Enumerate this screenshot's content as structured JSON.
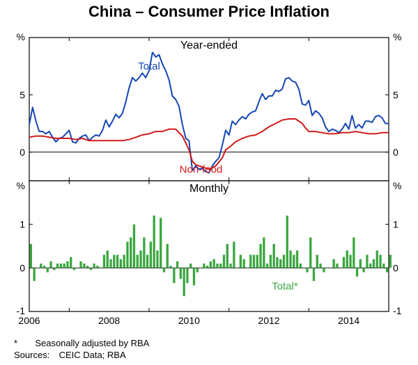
{
  "title": "China – Consumer Price Inflation",
  "top_panel": {
    "subtitle": "Year-ended",
    "type": "line",
    "y_unit_left": "%",
    "y_unit_right": "%",
    "ylim": [
      -2.5,
      10
    ],
    "yticks": [
      0,
      5
    ],
    "x_start": 2005,
    "x_end": 2014,
    "zero_line_color": "#000000",
    "series": [
      {
        "name": "Total",
        "color": "#1646b5",
        "line_width": 2,
        "label_pos_year": 2008,
        "label_pos_y": 7.2,
        "data": [
          [
            2005.0,
            2.4
          ],
          [
            2005.083,
            3.9
          ],
          [
            2005.167,
            2.7
          ],
          [
            2005.25,
            1.8
          ],
          [
            2005.333,
            1.8
          ],
          [
            2005.417,
            1.6
          ],
          [
            2005.5,
            1.8
          ],
          [
            2005.583,
            1.3
          ],
          [
            2005.667,
            0.9
          ],
          [
            2005.75,
            1.2
          ],
          [
            2005.833,
            1.3
          ],
          [
            2005.917,
            1.6
          ],
          [
            2006.0,
            1.9
          ],
          [
            2006.083,
            0.9
          ],
          [
            2006.167,
            0.8
          ],
          [
            2006.25,
            1.2
          ],
          [
            2006.333,
            1.4
          ],
          [
            2006.417,
            1.5
          ],
          [
            2006.5,
            1.0
          ],
          [
            2006.583,
            1.3
          ],
          [
            2006.667,
            1.5
          ],
          [
            2006.75,
            1.4
          ],
          [
            2006.833,
            1.9
          ],
          [
            2006.917,
            2.8
          ],
          [
            2007.0,
            2.2
          ],
          [
            2007.083,
            2.7
          ],
          [
            2007.167,
            3.3
          ],
          [
            2007.25,
            3.0
          ],
          [
            2007.333,
            3.4
          ],
          [
            2007.417,
            4.4
          ],
          [
            2007.5,
            5.6
          ],
          [
            2007.583,
            6.5
          ],
          [
            2007.667,
            6.2
          ],
          [
            2007.75,
            6.5
          ],
          [
            2007.833,
            6.9
          ],
          [
            2007.917,
            6.5
          ],
          [
            2008.0,
            7.1
          ],
          [
            2008.083,
            8.7
          ],
          [
            2008.167,
            8.3
          ],
          [
            2008.25,
            8.5
          ],
          [
            2008.333,
            7.7
          ],
          [
            2008.417,
            7.1
          ],
          [
            2008.5,
            6.3
          ],
          [
            2008.583,
            4.9
          ],
          [
            2008.667,
            4.6
          ],
          [
            2008.75,
            4.0
          ],
          [
            2008.833,
            2.4
          ],
          [
            2008.917,
            1.2
          ],
          [
            2009.0,
            1.0
          ],
          [
            2009.083,
            -1.6
          ],
          [
            2009.167,
            -1.2
          ],
          [
            2009.25,
            -1.5
          ],
          [
            2009.333,
            -1.4
          ],
          [
            2009.417,
            -1.7
          ],
          [
            2009.5,
            -1.8
          ],
          [
            2009.583,
            -1.2
          ],
          [
            2009.667,
            -0.8
          ],
          [
            2009.75,
            -0.5
          ],
          [
            2009.833,
            0.6
          ],
          [
            2009.917,
            1.9
          ],
          [
            2010.0,
            1.5
          ],
          [
            2010.083,
            2.7
          ],
          [
            2010.167,
            2.4
          ],
          [
            2010.25,
            2.8
          ],
          [
            2010.333,
            3.1
          ],
          [
            2010.417,
            2.9
          ],
          [
            2010.5,
            3.3
          ],
          [
            2010.583,
            3.5
          ],
          [
            2010.667,
            3.6
          ],
          [
            2010.75,
            4.4
          ],
          [
            2010.833,
            5.1
          ],
          [
            2010.917,
            4.6
          ],
          [
            2011.0,
            4.9
          ],
          [
            2011.083,
            4.9
          ],
          [
            2011.167,
            5.4
          ],
          [
            2011.25,
            5.3
          ],
          [
            2011.333,
            5.5
          ],
          [
            2011.417,
            6.4
          ],
          [
            2011.5,
            6.5
          ],
          [
            2011.583,
            6.2
          ],
          [
            2011.667,
            6.1
          ],
          [
            2011.75,
            5.5
          ],
          [
            2011.833,
            4.2
          ],
          [
            2011.917,
            4.1
          ],
          [
            2012.0,
            4.5
          ],
          [
            2012.083,
            3.2
          ],
          [
            2012.167,
            3.6
          ],
          [
            2012.25,
            3.4
          ],
          [
            2012.333,
            3.0
          ],
          [
            2012.417,
            2.2
          ],
          [
            2012.5,
            1.8
          ],
          [
            2012.583,
            2.0
          ],
          [
            2012.667,
            1.9
          ],
          [
            2012.75,
            1.7
          ],
          [
            2012.833,
            2.0
          ],
          [
            2012.917,
            2.5
          ],
          [
            2013.0,
            2.0
          ],
          [
            2013.083,
            3.2
          ],
          [
            2013.167,
            2.1
          ],
          [
            2013.25,
            2.4
          ],
          [
            2013.333,
            2.1
          ],
          [
            2013.417,
            2.7
          ],
          [
            2013.5,
            2.7
          ],
          [
            2013.583,
            2.6
          ],
          [
            2013.667,
            3.1
          ],
          [
            2013.75,
            3.2
          ],
          [
            2013.833,
            3.0
          ],
          [
            2013.917,
            2.5
          ],
          [
            2014.0,
            2.5
          ]
        ]
      },
      {
        "name": "Non-food",
        "color": "#d11a1a",
        "line_width": 2,
        "label_pos_year": 2009.3,
        "label_pos_y": -1.8,
        "data": [
          [
            2005.0,
            1.3
          ],
          [
            2005.167,
            1.4
          ],
          [
            2005.333,
            1.4
          ],
          [
            2005.5,
            1.3
          ],
          [
            2005.667,
            1.2
          ],
          [
            2005.833,
            1.2
          ],
          [
            2006.0,
            1.2
          ],
          [
            2006.167,
            1.1
          ],
          [
            2006.333,
            1.2
          ],
          [
            2006.5,
            1.0
          ],
          [
            2006.667,
            1.0
          ],
          [
            2006.833,
            1.0
          ],
          [
            2007.0,
            1.0
          ],
          [
            2007.167,
            1.0
          ],
          [
            2007.333,
            1.0
          ],
          [
            2007.5,
            1.1
          ],
          [
            2007.667,
            1.3
          ],
          [
            2007.833,
            1.5
          ],
          [
            2008.0,
            1.6
          ],
          [
            2008.167,
            1.8
          ],
          [
            2008.333,
            1.8
          ],
          [
            2008.5,
            2.0
          ],
          [
            2008.667,
            2.0
          ],
          [
            2008.833,
            1.4
          ],
          [
            2008.917,
            0.8
          ],
          [
            2009.0,
            0.2
          ],
          [
            2009.083,
            -0.8
          ],
          [
            2009.167,
            -1.1
          ],
          [
            2009.333,
            -1.3
          ],
          [
            2009.5,
            -1.5
          ],
          [
            2009.667,
            -1.2
          ],
          [
            2009.833,
            -0.5
          ],
          [
            2009.917,
            0.2
          ],
          [
            2010.0,
            0.4
          ],
          [
            2010.167,
            0.9
          ],
          [
            2010.333,
            1.2
          ],
          [
            2010.5,
            1.4
          ],
          [
            2010.667,
            1.5
          ],
          [
            2010.833,
            1.8
          ],
          [
            2011.0,
            2.2
          ],
          [
            2011.167,
            2.5
          ],
          [
            2011.333,
            2.8
          ],
          [
            2011.5,
            2.9
          ],
          [
            2011.667,
            2.9
          ],
          [
            2011.833,
            2.5
          ],
          [
            2011.917,
            2.1
          ],
          [
            2012.0,
            1.8
          ],
          [
            2012.167,
            1.8
          ],
          [
            2012.333,
            1.7
          ],
          [
            2012.5,
            1.6
          ],
          [
            2012.667,
            1.6
          ],
          [
            2012.833,
            1.7
          ],
          [
            2013.0,
            1.7
          ],
          [
            2013.167,
            1.8
          ],
          [
            2013.333,
            1.7
          ],
          [
            2013.5,
            1.6
          ],
          [
            2013.667,
            1.6
          ],
          [
            2013.833,
            1.7
          ],
          [
            2013.917,
            1.7
          ],
          [
            2014.0,
            1.7
          ]
        ]
      }
    ]
  },
  "bottom_panel": {
    "subtitle": "Monthly",
    "type": "bar",
    "y_unit_left": "%",
    "y_unit_right": "%",
    "ylim": [
      -1,
      2
    ],
    "yticks": [
      0,
      1
    ],
    "x_start": 2005,
    "x_end": 2014,
    "zero_line_color": "#000000",
    "bar_series": {
      "name": "Total*",
      "color": "#3aa640",
      "label_pos_year": 2011.4,
      "label_pos_y": -0.5,
      "data": [
        0.55,
        -0.3,
        0.0,
        0.1,
        0.05,
        -0.1,
        0.15,
        -0.05,
        0.1,
        0.1,
        0.1,
        0.15,
        0.25,
        -0.05,
        0.0,
        0.15,
        0.1,
        0.05,
        -0.05,
        0.1,
        0.05,
        0.0,
        0.3,
        0.4,
        0.2,
        0.3,
        0.3,
        0.2,
        0.3,
        0.6,
        0.7,
        1.0,
        0.3,
        0.4,
        0.7,
        0.3,
        0.6,
        1.2,
        0.4,
        1.15,
        -0.1,
        0.55,
        0.05,
        -0.35,
        0.15,
        -0.25,
        -0.65,
        -0.35,
        0.1,
        -0.4,
        -0.1,
        0.0,
        0.1,
        0.05,
        0.15,
        0.2,
        0.1,
        0.1,
        0.3,
        0.55,
        0.1,
        0.6,
        0.0,
        0.3,
        0.2,
        0.0,
        0.3,
        0.3,
        0.3,
        0.55,
        0.7,
        0.1,
        0.3,
        0.55,
        0.25,
        0.2,
        0.3,
        1.2,
        0.4,
        0.3,
        0.4,
        0.1,
        0.0,
        -0.1,
        0.7,
        -0.3,
        0.3,
        0.1,
        -0.1,
        0.0,
        0.0,
        0.2,
        0.1,
        0.0,
        0.25,
        0.4,
        0.3,
        0.7,
        -0.2,
        0.2,
        -0.1,
        0.3,
        0.1,
        0.2,
        0.4,
        0.3,
        0.1,
        -0.1,
        0.3
      ]
    }
  },
  "x_ticks": [
    2006,
    2008,
    2010,
    2012,
    2014
  ],
  "footnote_marker": "*",
  "footnote_text": "Seasonally adjusted by RBA",
  "sources_label": "Sources:",
  "sources_text": "CEIC Data; RBA",
  "frame_color": "#000000",
  "background_color": "#ffffff"
}
